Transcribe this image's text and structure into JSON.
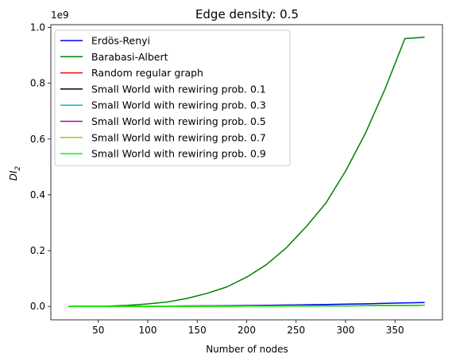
{
  "chart_data": {
    "type": "line",
    "title": "Edge density: 0.5",
    "xlabel": "Number of nodes",
    "ylabel": "DI",
    "ylabel_sub": "2",
    "y_offset_text": "1e9",
    "xlim": [
      2,
      398
    ],
    "ylim": [
      -0.048,
      1.01
    ],
    "x_ticks": [
      50,
      100,
      150,
      200,
      250,
      300,
      350
    ],
    "y_ticks": [
      0.0,
      0.2,
      0.4,
      0.6,
      0.8,
      1.0
    ],
    "y_tick_labels": [
      "0.0",
      "0.2",
      "0.4",
      "0.6",
      "0.8",
      "1.0"
    ],
    "legend_position": "upper-left",
    "x": [
      20,
      40,
      60,
      80,
      100,
      120,
      140,
      160,
      180,
      200,
      220,
      240,
      260,
      280,
      300,
      320,
      340,
      360,
      380
    ],
    "series": [
      {
        "name": "Erdös-Renyi",
        "color": "#0000ff",
        "values": [
          1e-05,
          5e-05,
          0.0002,
          0.0005,
          0.0008,
          0.0013,
          0.0018,
          0.0023,
          0.0028,
          0.0034,
          0.004,
          0.005,
          0.006,
          0.007,
          0.0082,
          0.0095,
          0.011,
          0.0125,
          0.014
        ]
      },
      {
        "name": "Barabasi-Albert",
        "color": "#008000",
        "values": [
          0.0,
          0.0003,
          0.0013,
          0.004,
          0.009,
          0.016,
          0.029,
          0.047,
          0.07,
          0.105,
          0.15,
          0.21,
          0.285,
          0.37,
          0.485,
          0.62,
          0.78,
          0.96,
          0.965
        ]
      },
      {
        "name": "Random regular graph",
        "color": "#ff0000",
        "values": [
          0.0,
          0.0,
          0.0001,
          0.0002,
          0.0003,
          0.0004,
          0.0006,
          0.0008,
          0.001,
          0.0012,
          0.0015,
          0.0018,
          0.0021,
          0.0024,
          0.0028,
          0.0032,
          0.0036,
          0.004,
          0.0045
        ]
      },
      {
        "name": "Small World with rewiring prob. 0.1",
        "color": "#000000",
        "values": [
          0.0,
          0.0,
          0.0001,
          0.0002,
          0.0003,
          0.0004,
          0.0005,
          0.0007,
          0.0009,
          0.0011,
          0.0013,
          0.0015,
          0.0018,
          0.0021,
          0.0024,
          0.0027,
          0.0031,
          0.0035,
          0.0039
        ]
      },
      {
        "name": "Small World with rewiring prob. 0.3",
        "color": "#00bfbf",
        "values": [
          0.0,
          0.0,
          0.0001,
          0.0002,
          0.0003,
          0.0004,
          0.0005,
          0.0007,
          0.0009,
          0.0011,
          0.0013,
          0.0015,
          0.0018,
          0.0021,
          0.0024,
          0.0027,
          0.0031,
          0.0035,
          0.0039
        ]
      },
      {
        "name": "Small World with rewiring prob. 0.5",
        "color": "#bf00bf",
        "values": [
          0.0,
          0.0,
          0.0001,
          0.0002,
          0.0003,
          0.0004,
          0.0005,
          0.0007,
          0.0009,
          0.0011,
          0.0013,
          0.0015,
          0.0018,
          0.0021,
          0.0024,
          0.0027,
          0.0031,
          0.0035,
          0.0039
        ]
      },
      {
        "name": "Small World with rewiring prob. 0.7",
        "color": "#bfbf00",
        "values": [
          0.0,
          0.0,
          0.0001,
          0.0002,
          0.0003,
          0.0004,
          0.0005,
          0.0007,
          0.0009,
          0.0011,
          0.0013,
          0.0015,
          0.0018,
          0.0021,
          0.0024,
          0.0027,
          0.0031,
          0.0035,
          0.0039
        ]
      },
      {
        "name": "Small World with rewiring prob. 0.9",
        "color": "#00ff00",
        "values": [
          0.0,
          0.0,
          0.0001,
          0.0002,
          0.0003,
          0.0004,
          0.0005,
          0.0007,
          0.0009,
          0.0011,
          0.0013,
          0.0015,
          0.0018,
          0.0021,
          0.0024,
          0.0027,
          0.0031,
          0.0035,
          0.0039
        ]
      }
    ]
  }
}
